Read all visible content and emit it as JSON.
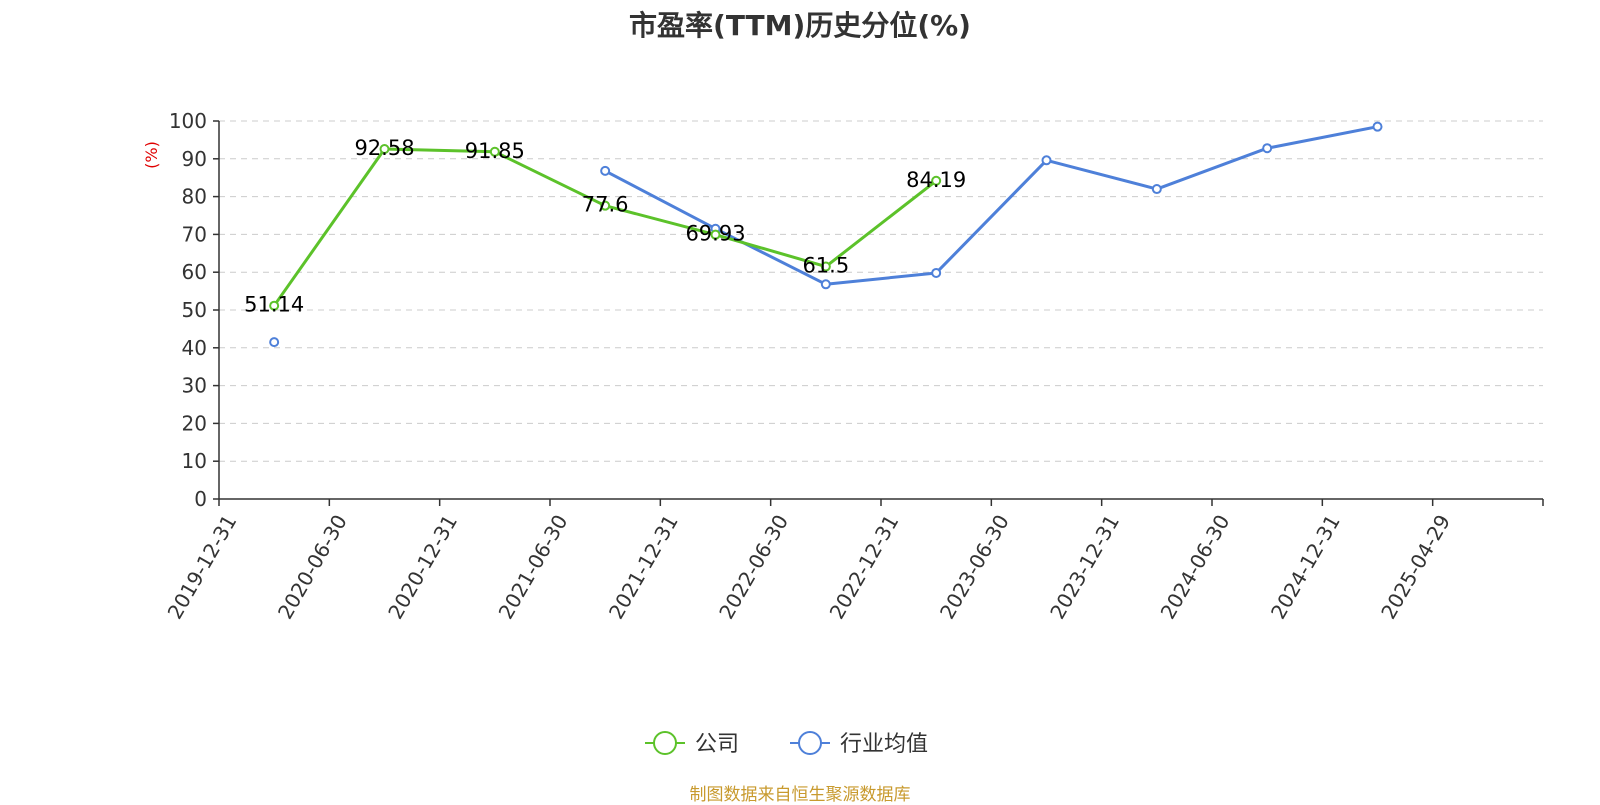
{
  "chart_data": {
    "type": "line",
    "title": "市盈率(TTM)历史分位(%)",
    "ylabel": "(%)",
    "ylim": [
      0,
      100
    ],
    "y_ticks": [
      0,
      10,
      20,
      30,
      40,
      50,
      60,
      70,
      80,
      90,
      100
    ],
    "x_ticks": [
      "2019-12-31",
      "2020-06-30",
      "2020-12-31",
      "2021-06-30",
      "2021-12-31",
      "2022-06-30",
      "2022-12-31",
      "2023-06-30",
      "2023-12-31",
      "2024-06-30",
      "2024-12-31",
      "2025-04-29"
    ],
    "grid": true,
    "legend_position": "bottom-center",
    "series": [
      {
        "name": "公司",
        "color": "#5cc22a",
        "show_labels": true,
        "points": [
          {
            "x": "2019-12-31",
            "y": 51.14
          },
          {
            "x": "2020-06-30",
            "y": 92.58
          },
          {
            "x": "2020-12-31",
            "y": 91.85
          },
          {
            "x": "2021-06-30",
            "y": 77.6
          },
          {
            "x": "2021-12-31",
            "y": 69.93
          },
          {
            "x": "2022-06-30",
            "y": 61.5
          },
          {
            "x": "2022-12-31",
            "y": 84.19
          }
        ]
      },
      {
        "name": "行业均值",
        "color": "#4e80d9",
        "show_labels": false,
        "points": [
          {
            "x": "2019-12-31",
            "y": 41.5
          },
          {
            "x": "2021-06-30",
            "y": 86.8
          },
          {
            "x": "2021-12-31",
            "y": 71.5
          },
          {
            "x": "2022-06-30",
            "y": 56.8
          },
          {
            "x": "2022-12-31",
            "y": 59.8
          },
          {
            "x": "2023-06-30",
            "y": 89.6
          },
          {
            "x": "2023-12-31",
            "y": 82.0
          },
          {
            "x": "2024-06-30",
            "y": 92.8
          },
          {
            "x": "2024-12-31",
            "y": 98.5
          }
        ],
        "segments": [
          [
            1,
            8
          ]
        ]
      }
    ],
    "source": "制图数据来自恒生聚源数据库",
    "colors": {
      "axis": "#333333",
      "grid": "#cccccc",
      "unit_label": "#e00000",
      "source": "#c89a2e"
    }
  }
}
